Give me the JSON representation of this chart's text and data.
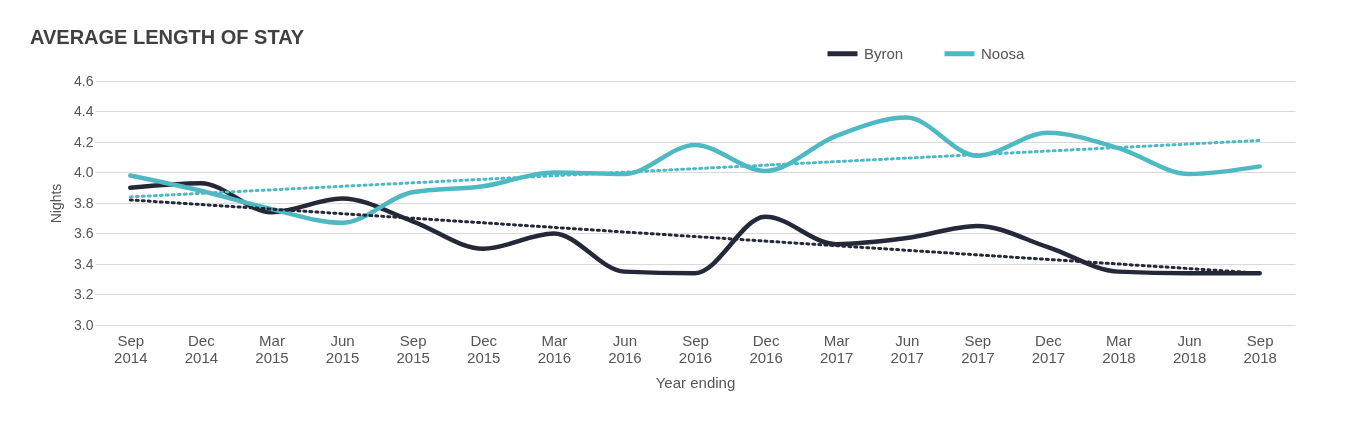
{
  "chart_data": {
    "type": "line",
    "title": "AVERAGE LENGTH OF STAY",
    "xlabel": "Year ending",
    "ylabel": "Nights",
    "categories": [
      "Sep 2014",
      "Dec 2014",
      "Mar 2015",
      "Jun 2015",
      "Sep 2015",
      "Dec 2015",
      "Mar 2016",
      "Jun 2016",
      "Sep 2016",
      "Dec 2016",
      "Mar 2017",
      "Jun 2017",
      "Sep 2017",
      "Dec 2017",
      "Mar 2018",
      "Jun 2018",
      "Sep 2018"
    ],
    "series": [
      {
        "name": "Byron",
        "color": "#252838",
        "values": [
          3.9,
          3.93,
          3.74,
          3.83,
          3.68,
          3.5,
          3.6,
          3.35,
          3.34,
          3.71,
          3.53,
          3.57,
          3.65,
          3.51,
          3.35,
          3.34,
          3.34
        ]
      },
      {
        "name": "Noosa",
        "color": "#4fb9c3",
        "values": [
          3.98,
          3.88,
          3.76,
          3.67,
          3.87,
          3.91,
          4.0,
          3.99,
          4.18,
          4.01,
          4.24,
          4.36,
          4.11,
          4.26,
          4.16,
          3.99,
          4.04
        ]
      },
      {
        "type": "line",
        "color": "#252838",
        "line_style": "dotted",
        "x": [
          "Sep 2014",
          "Sep 2018"
        ],
        "values": [
          3.82,
          3.34
        ]
      },
      {
        "type": "line",
        "color": "#4fb9c3",
        "line_style": "dotted",
        "x": [
          "Sep 2014",
          "Sep 2018"
        ],
        "values": [
          3.84,
          4.21
        ]
      }
    ],
    "ylim": [
      3.0,
      4.6
    ],
    "yticks": [
      {
        "value": 3.0,
        "label": "3.0"
      },
      {
        "value": 3.2,
        "label": "3.2"
      },
      {
        "value": 3.4,
        "label": "3.4"
      },
      {
        "value": 3.6,
        "label": "3.6"
      },
      {
        "value": 3.8,
        "label": "3.8"
      },
      {
        "value": 4.0,
        "label": "4.0"
      },
      {
        "value": 4.2,
        "label": "4.2"
      },
      {
        "value": 4.4,
        "label": "4.4"
      },
      {
        "value": 4.6,
        "label": "4.6"
      }
    ],
    "grid": "y",
    "legend": "top right",
    "marker": "none",
    "line_style": "solid"
  }
}
